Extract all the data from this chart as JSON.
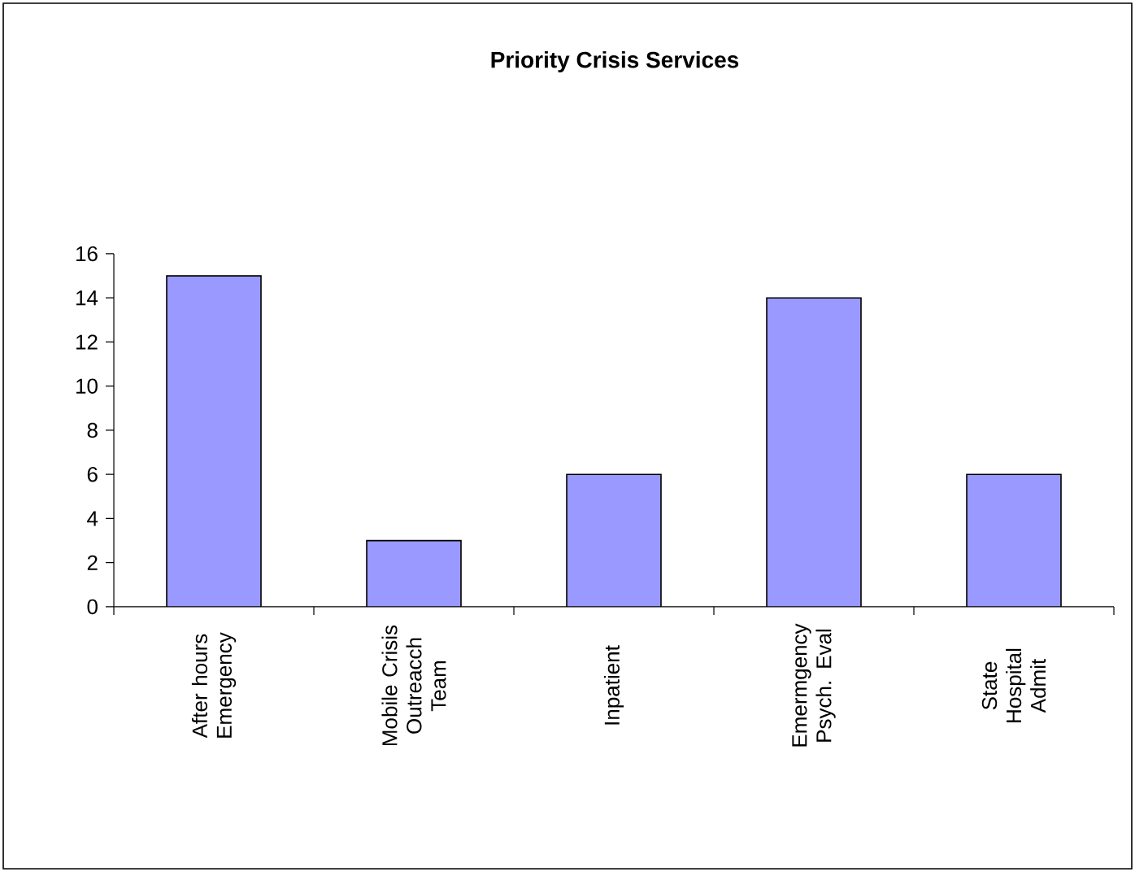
{
  "chart_data": {
    "type": "bar",
    "title": "Priority Crisis Services",
    "categories": [
      "After hours Emergency",
      "Mobile Crisis Outreacch Team",
      "Inpatient",
      "Emermgency Psych. Eval",
      "State Hospital Admit"
    ],
    "values": [
      15,
      3,
      6,
      14,
      6
    ],
    "color": "#9999ff",
    "ylim": [
      0,
      16
    ],
    "yticks": [
      0,
      2,
      4,
      6,
      8,
      10,
      12,
      14,
      16
    ],
    "grid": false
  }
}
